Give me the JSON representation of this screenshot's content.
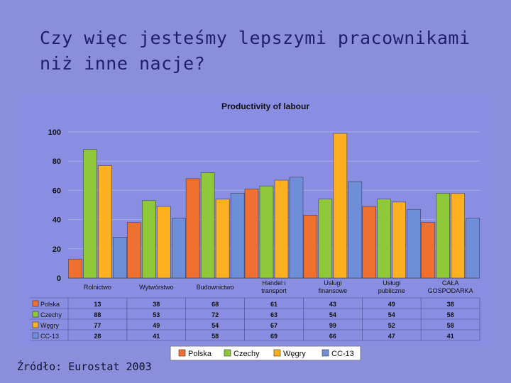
{
  "slide": {
    "title": "Czy więc jesteśmy lepszymi pracownikami\nniż inne nacje?",
    "source": "Źródło: Eurostat 2003"
  },
  "colors": {
    "background": "#8b8fdb",
    "plot_area": "#8a8ee2"
  },
  "chart_data": {
    "type": "bar",
    "title": "Productivity of labour",
    "categories": [
      "Rolnictwo",
      "Wytwórstwo",
      "Budownictwo",
      "Handel i transport",
      "Usługi finansowe",
      "Usługi publiczne",
      "CAŁA GOSPODARKA"
    ],
    "series": [
      {
        "name": "Polska",
        "color": "#f07030",
        "values": [
          13,
          38,
          68,
          61,
          43,
          49,
          38
        ]
      },
      {
        "name": "Czechy",
        "color": "#8fc93a",
        "values": [
          88,
          53,
          72,
          63,
          54,
          54,
          58
        ]
      },
      {
        "name": "Węgry",
        "color": "#ffb020",
        "values": [
          77,
          49,
          54,
          67,
          99,
          52,
          58
        ]
      },
      {
        "name": "CC-13",
        "color": "#6e8fd8",
        "values": [
          28,
          41,
          58,
          69,
          66,
          47,
          41
        ]
      }
    ],
    "ylim": [
      0,
      100
    ],
    "yticks": [
      0,
      20,
      40,
      60,
      80,
      100
    ],
    "grid": true,
    "legend": "bottom",
    "data_table": true
  }
}
